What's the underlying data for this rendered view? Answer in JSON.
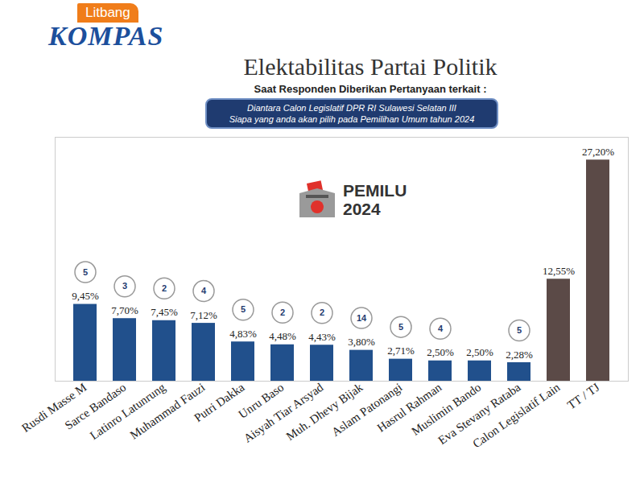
{
  "chart_data": {
    "type": "bar",
    "title": "Elektabilitas Partai Politik",
    "subtitle": "Saat Responden Diberikan Pertanyaan terkait :",
    "annotations": {
      "logo": [
        "Litbang",
        "KOMPAS"
      ],
      "question": [
        "Diantara Calon Legislatif DPR RI Sulawesi Selatan III",
        "Siapa yang anda akan pilih pada Pemilihan Umum tahun 2024"
      ],
      "badge": [
        "PEMILU",
        "2024"
      ]
    },
    "categories": [
      "Rusdi Masse M",
      "Sarce Bandaso",
      "Latinro Latunrung",
      "Muhammad Fauzi",
      "Putri Dakka",
      "Unru Baso",
      "Aisyah Tiar Arsyad",
      "Muh. Dhevy Bijak",
      "Aslam Patonangi",
      "Hasrul Rahman",
      "Muslimin Bando",
      "Eva Stevany Rataba",
      "Calon Legislatif Lain",
      "TT / TJ"
    ],
    "values": [
      9.45,
      7.7,
      7.45,
      7.12,
      4.83,
      4.48,
      4.43,
      3.8,
      2.71,
      2.5,
      2.5,
      2.28,
      12.55,
      27.2
    ],
    "value_labels": [
      "9,45%",
      "7,70%",
      "7,45%",
      "7,12%",
      "4,83%",
      "4,48%",
      "4,43%",
      "3,80%",
      "2,71%",
      "2,50%",
      "2,50%",
      "2,28%",
      "12,55%",
      "27,20%"
    ],
    "party_numbers": [
      5,
      3,
      2,
      4,
      5,
      2,
      2,
      14,
      5,
      4,
      null,
      5,
      null,
      null
    ],
    "colors": [
      "#21508c",
      "#21508c",
      "#21508c",
      "#21508c",
      "#21508c",
      "#21508c",
      "#21508c",
      "#21508c",
      "#21508c",
      "#21508c",
      "#21508c",
      "#21508c",
      "#5b4a47",
      "#5b4a47"
    ],
    "ylim": [
      0,
      30
    ],
    "grid": false,
    "data_labels": true,
    "tick_labels": "x"
  }
}
